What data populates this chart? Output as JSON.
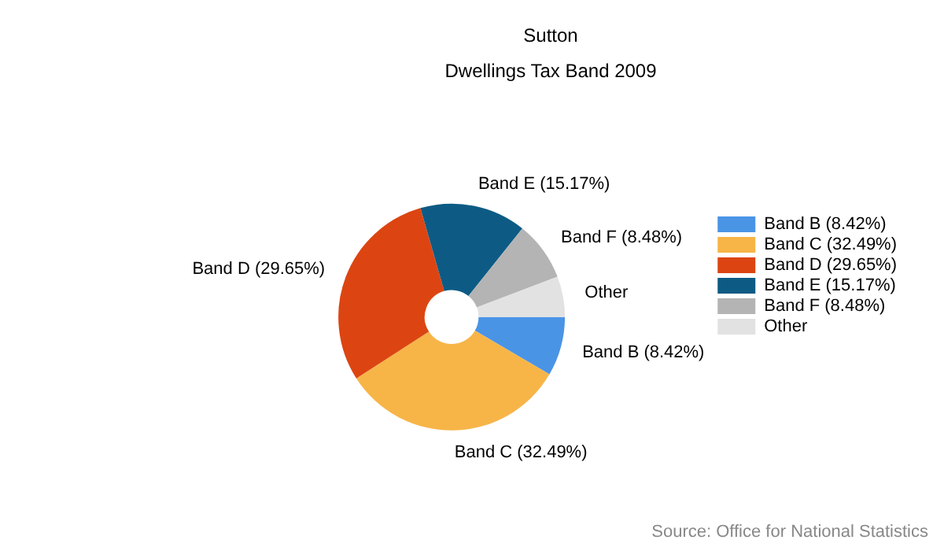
{
  "chart_data": {
    "type": "donut",
    "title": "Sutton",
    "subtitle": "Dwellings Tax Band 2009",
    "categories": [
      "Band B (8.42%)",
      "Band C (32.49%)",
      "Band D (29.65%)",
      "Band E (15.17%)",
      "Band F (8.48%)",
      "Other"
    ],
    "values": [
      8.42,
      32.49,
      29.65,
      15.17,
      8.48,
      5.79
    ],
    "colors": [
      "#4a94e6",
      "#f7b548",
      "#dc4512",
      "#0d5b84",
      "#b4b4b4",
      "#e2e2e2"
    ],
    "legend": "right",
    "annotations": [
      "Source: Office for National Statistics"
    ]
  }
}
